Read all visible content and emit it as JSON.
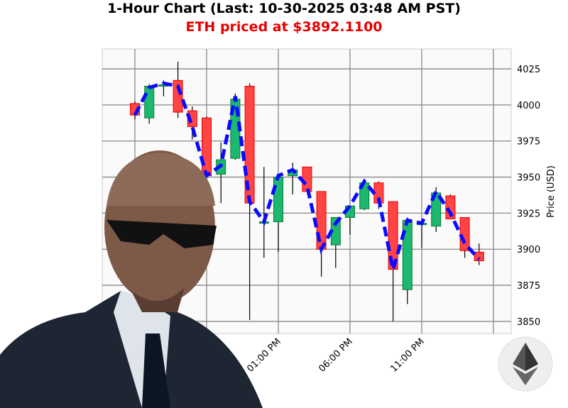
{
  "chart_data": {
    "type": "candlestick",
    "title": "1-Hour Chart (Last: 10-30-2025 03:48 AM PST)",
    "subtitle": "ETH priced at $3892.1100",
    "xlabel": "",
    "ylabel": "Price (USD)",
    "ylim": [
      3841.6,
      4038.8
    ],
    "yticks": [
      3850,
      3875,
      3900,
      3925,
      3950,
      3975,
      4000,
      4025
    ],
    "xticks_visible": [
      "01:00 PM",
      "06:00 PM",
      "11:00 PM"
    ],
    "grid": true,
    "colors": {
      "up": "#1db870",
      "down": "#ff4444",
      "line": "#0a0aff",
      "title": "#000000",
      "subtitle": "#e60000"
    },
    "candles": [
      {
        "t": "03:00 AM",
        "o": 4001,
        "h": 4002.5,
        "l": 3990,
        "c": 3993
      },
      {
        "t": "04:00 AM",
        "o": 3991,
        "h": 4014.5,
        "l": 3987,
        "c": 4013
      },
      {
        "t": "05:00 AM",
        "o": 4013,
        "h": 4017,
        "l": 4006,
        "c": 4014
      },
      {
        "t": "06:00 AM",
        "o": 4017,
        "h": 4030,
        "l": 3991,
        "c": 3995
      },
      {
        "t": "07:00 AM",
        "o": 3996,
        "h": 3999,
        "l": 3976,
        "c": 3985
      },
      {
        "t": "08:00 AM",
        "o": 3991,
        "h": 3992,
        "l": 3946,
        "c": 3951
      },
      {
        "t": "09:00 AM",
        "o": 3952,
        "h": 3974,
        "l": 3932,
        "c": 3962
      },
      {
        "t": "10:00 AM",
        "o": 3963,
        "h": 4008,
        "l": 3962,
        "c": 4004
      },
      {
        "t": "11:00 AM",
        "o": 4013,
        "h": 4015,
        "l": 3851,
        "c": 3932
      },
      {
        "t": "12:00 PM",
        "o": 3918,
        "h": 3957,
        "l": 3894,
        "c": 3919
      },
      {
        "t": "01:00 PM",
        "o": 3919,
        "h": 3952,
        "l": 3898,
        "c": 3950
      },
      {
        "t": "02:00 PM",
        "o": 3951,
        "h": 3960,
        "l": 3938,
        "c": 3955
      },
      {
        "t": "03:00 PM",
        "o": 3957,
        "h": 3957,
        "l": 3940,
        "c": 3940
      },
      {
        "t": "04:00 PM",
        "o": 3940,
        "h": 3940,
        "l": 3881,
        "c": 3900
      },
      {
        "t": "05:00 PM",
        "o": 3903,
        "h": 3922,
        "l": 3887,
        "c": 3922
      },
      {
        "t": "06:00 PM",
        "o": 3922,
        "h": 3930,
        "l": 3910,
        "c": 3930
      },
      {
        "t": "07:00 PM",
        "o": 3928,
        "h": 3947,
        "l": 3927,
        "c": 3946
      },
      {
        "t": "08:00 PM",
        "o": 3946,
        "h": 3947,
        "l": 3928,
        "c": 3932
      },
      {
        "t": "09:00 PM",
        "o": 3933,
        "h": 3933,
        "l": 3850,
        "c": 3886
      },
      {
        "t": "10:00 PM",
        "o": 3872,
        "h": 3922,
        "l": 3862,
        "c": 3920
      },
      {
        "t": "11:00 PM",
        "o": 3917,
        "h": 3920,
        "l": 3901,
        "c": 3918
      },
      {
        "t": "12:00 AM",
        "o": 3916,
        "h": 3943,
        "l": 3912,
        "c": 3939
      },
      {
        "t": "01:00 AM",
        "o": 3937,
        "h": 3938,
        "l": 3921,
        "c": 3921
      },
      {
        "t": "02:00 AM",
        "o": 3922,
        "h": 3922,
        "l": 3894,
        "c": 3899
      },
      {
        "t": "03:00 AM",
        "o": 3898,
        "h": 3904,
        "l": 3889,
        "c": 3892
      }
    ],
    "line": [
      3993,
      4012,
      4015,
      4013,
      3985,
      3951,
      3958,
      4006,
      3933,
      3919,
      3951,
      3955,
      3944,
      3900,
      3918,
      3930,
      3947,
      3935,
      3886,
      3920,
      3918,
      3940,
      3925,
      3904,
      3893
    ]
  }
}
